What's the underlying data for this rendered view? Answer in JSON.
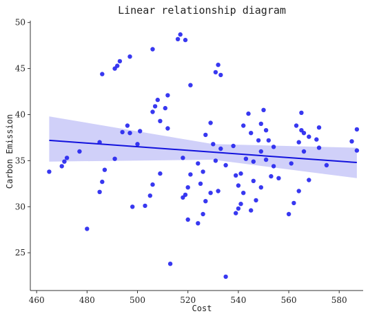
{
  "chart_data": {
    "type": "scatter",
    "title": "Linear relationship diagram",
    "xlabel": "Cost",
    "ylabel": "Carbon Emission",
    "xlim": [
      457.5,
      589.5
    ],
    "ylim": [
      20.9,
      50.2
    ],
    "xticks": [
      460,
      480,
      500,
      520,
      540,
      560,
      580
    ],
    "yticks": [
      25,
      30,
      35,
      40,
      45,
      50
    ],
    "grid": false,
    "point_color": "#2222ee",
    "line_color": "#1111dd",
    "band_color": "#c8c8f8",
    "regression": {
      "x": [
        465,
        587
      ],
      "y": [
        37.2,
        34.8
      ],
      "band_upper": [
        39.8,
        36.4
      ],
      "band_lower": [
        34.9,
        33.1
      ],
      "band_mid_x": 530,
      "band_mid_upper": 36.8,
      "band_mid_lower": 35.1
    },
    "points": [
      [
        465,
        33.8
      ],
      [
        470,
        34.4
      ],
      [
        471,
        34.9
      ],
      [
        472,
        35.3
      ],
      [
        477,
        36.0
      ],
      [
        480,
        27.6
      ],
      [
        485,
        37.0
      ],
      [
        485,
        31.6
      ],
      [
        486,
        44.4
      ],
      [
        486,
        32.7
      ],
      [
        487,
        34.0
      ],
      [
        491,
        45.0
      ],
      [
        491,
        35.2
      ],
      [
        492,
        45.3
      ],
      [
        493,
        45.8
      ],
      [
        494,
        38.1
      ],
      [
        496,
        38.8
      ],
      [
        497,
        46.3
      ],
      [
        497,
        38.0
      ],
      [
        498,
        30.0
      ],
      [
        500,
        36.8
      ],
      [
        501,
        38.2
      ],
      [
        503,
        30.1
      ],
      [
        505,
        31.2
      ],
      [
        506,
        47.1
      ],
      [
        506,
        40.3
      ],
      [
        506,
        32.4
      ],
      [
        507,
        40.9
      ],
      [
        508,
        41.6
      ],
      [
        509,
        39.3
      ],
      [
        509,
        33.6
      ],
      [
        511,
        40.7
      ],
      [
        512,
        38.5
      ],
      [
        512,
        42.1
      ],
      [
        513,
        23.8
      ],
      [
        516,
        48.2
      ],
      [
        517,
        48.7
      ],
      [
        518,
        35.3
      ],
      [
        518,
        31.0
      ],
      [
        519,
        48.1
      ],
      [
        519,
        31.3
      ],
      [
        520,
        32.1
      ],
      [
        520,
        28.6
      ],
      [
        521,
        43.2
      ],
      [
        521,
        33.5
      ],
      [
        524,
        28.2
      ],
      [
        524,
        34.7
      ],
      [
        525,
        32.5
      ],
      [
        526,
        29.2
      ],
      [
        526,
        33.8
      ],
      [
        527,
        37.8
      ],
      [
        527,
        30.6
      ],
      [
        529,
        39.1
      ],
      [
        529,
        31.5
      ],
      [
        530,
        36.8
      ],
      [
        531,
        35.0
      ],
      [
        531,
        44.6
      ],
      [
        532,
        31.7
      ],
      [
        532,
        45.4
      ],
      [
        533,
        36.3
      ],
      [
        533,
        44.3
      ],
      [
        535,
        34.5
      ],
      [
        535,
        22.4
      ],
      [
        538,
        36.6
      ],
      [
        539,
        29.3
      ],
      [
        539,
        33.4
      ],
      [
        540,
        32.3
      ],
      [
        540,
        29.8
      ],
      [
        541,
        30.3
      ],
      [
        541,
        33.6
      ],
      [
        542,
        38.8
      ],
      [
        542,
        31.5
      ],
      [
        543,
        35.2
      ],
      [
        544,
        40.1
      ],
      [
        545,
        29.6
      ],
      [
        545,
        38.0
      ],
      [
        546,
        34.9
      ],
      [
        546,
        32.8
      ],
      [
        547,
        30.7
      ],
      [
        548,
        37.2
      ],
      [
        549,
        39.0
      ],
      [
        549,
        36.0
      ],
      [
        549,
        32.1
      ],
      [
        550,
        40.5
      ],
      [
        551,
        35.1
      ],
      [
        551,
        38.3
      ],
      [
        552,
        37.2
      ],
      [
        553,
        33.3
      ],
      [
        554,
        36.5
      ],
      [
        554,
        34.4
      ],
      [
        556,
        33.1
      ],
      [
        560,
        29.2
      ],
      [
        561,
        34.7
      ],
      [
        562,
        30.4
      ],
      [
        563,
        38.8
      ],
      [
        564,
        31.7
      ],
      [
        564,
        37.0
      ],
      [
        565,
        40.2
      ],
      [
        565,
        38.3
      ],
      [
        566,
        38.0
      ],
      [
        566,
        36.0
      ],
      [
        568,
        32.9
      ],
      [
        568,
        37.6
      ],
      [
        571,
        37.3
      ],
      [
        572,
        38.6
      ],
      [
        572,
        36.4
      ],
      [
        575,
        34.5
      ],
      [
        585,
        37.1
      ],
      [
        587,
        38.4
      ],
      [
        587,
        36.1
      ]
    ]
  }
}
